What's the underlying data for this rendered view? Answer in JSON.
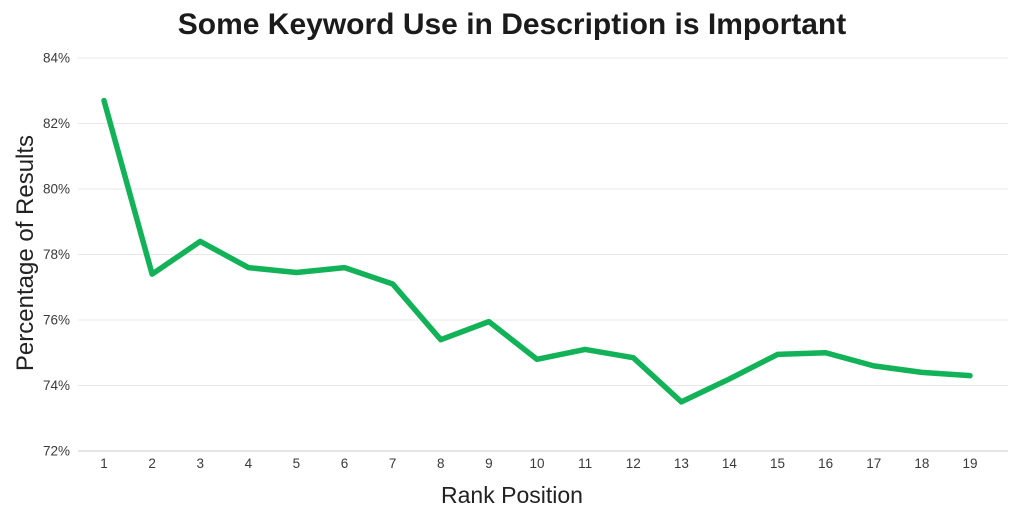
{
  "chart_data": {
    "type": "line",
    "title": "Some Keyword Use in Description is Important",
    "xlabel": "Rank Position",
    "ylabel": "Percentage of Results",
    "x": [
      1,
      2,
      3,
      4,
      5,
      6,
      7,
      8,
      9,
      10,
      11,
      12,
      13,
      14,
      15,
      16,
      17,
      18,
      19
    ],
    "values": [
      82.7,
      77.4,
      78.4,
      77.6,
      77.45,
      77.6,
      77.1,
      75.4,
      75.95,
      74.8,
      75.1,
      74.85,
      73.5,
      74.2,
      74.95,
      75.0,
      74.6,
      74.4,
      74.3
    ],
    "ylim": [
      72,
      84
    ],
    "yticks": [
      72,
      74,
      76,
      78,
      80,
      82,
      84
    ],
    "ytick_suffix": "%",
    "grid": true,
    "legend": "none",
    "colors": {
      "line": "#12b258",
      "gridline": "#e8e8e8",
      "axis_line": "#cccccc",
      "tick_text": "#3a3a3a",
      "title_text": "#1b1b1b",
      "background": "#ffffff"
    }
  }
}
